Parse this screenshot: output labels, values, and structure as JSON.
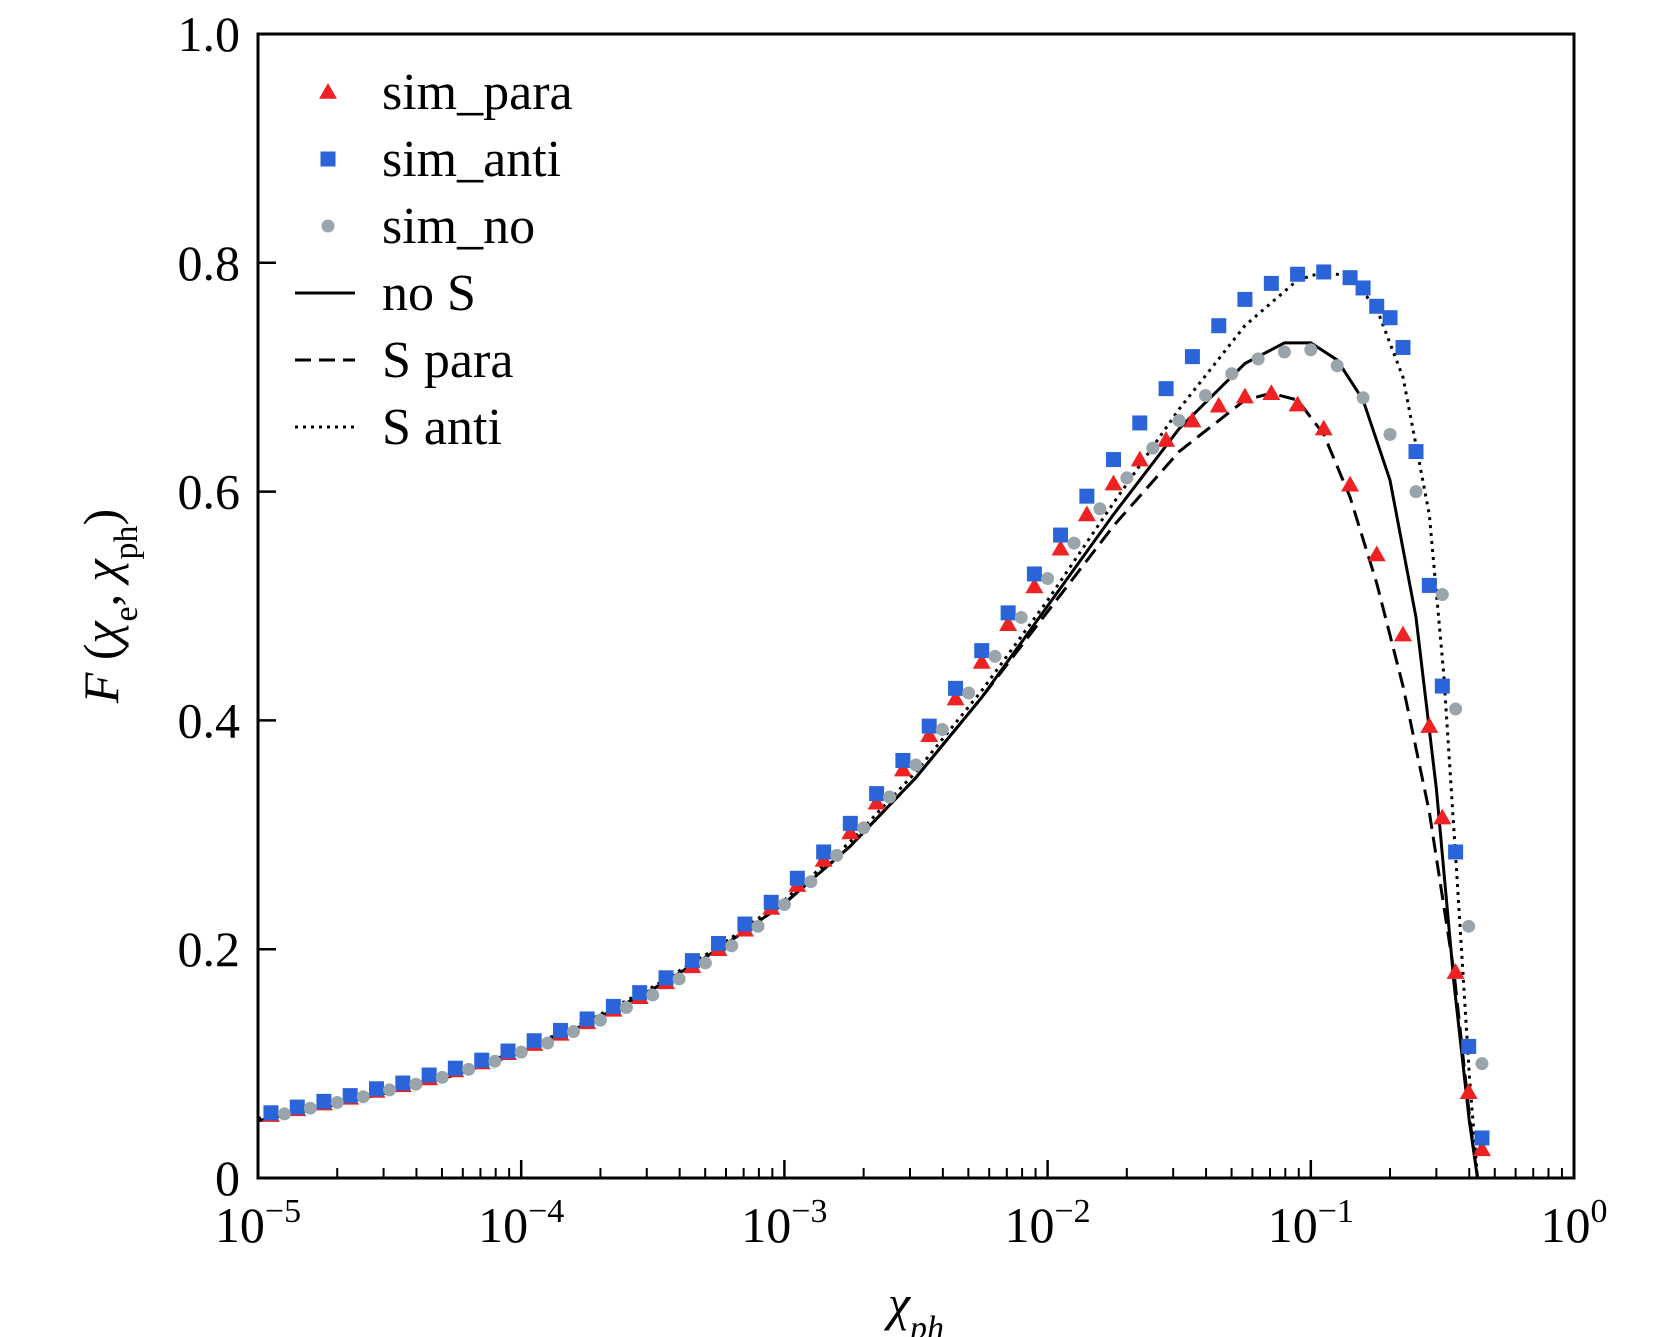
{
  "chart_data": {
    "type": "scatter",
    "xscale": "log",
    "xlim": [
      1e-05,
      1
    ],
    "ylim": [
      0,
      1.0
    ],
    "xlabel_html": "χ<tspan baseline-shift='sub' font-size='34'>ph</tspan>",
    "xlabel": "χph",
    "ylabel": "F (χe, χph)",
    "x_ticks": [
      {
        "value": 1e-05,
        "base": "10",
        "exp": "−5"
      },
      {
        "value": 0.0001,
        "base": "10",
        "exp": "−4"
      },
      {
        "value": 0.001,
        "base": "10",
        "exp": "−3"
      },
      {
        "value": 0.01,
        "base": "10",
        "exp": "−2"
      },
      {
        "value": 0.1,
        "base": "10",
        "exp": "−1"
      },
      {
        "value": 1,
        "base": "10",
        "exp": "0"
      }
    ],
    "y_ticks": [
      {
        "value": 0,
        "label": "0"
      },
      {
        "value": 0.2,
        "label": "0.2"
      },
      {
        "value": 0.4,
        "label": "0.4"
      },
      {
        "value": 0.6,
        "label": "0.6"
      },
      {
        "value": 0.8,
        "label": "0.8"
      },
      {
        "value": 1.0,
        "label": "1.0"
      }
    ],
    "legend_position": "top-left",
    "grid": false,
    "series": [
      {
        "name": "sim_para",
        "kind": "scatter",
        "marker": "triangle",
        "color": "#ee2222",
        "x": [
          1.12e-05,
          1.41e-05,
          1.78e-05,
          2.24e-05,
          2.82e-05,
          3.55e-05,
          4.47e-05,
          5.62e-05,
          7.08e-05,
          8.91e-05,
          0.000112,
          0.000141,
          0.000178,
          0.000224,
          0.000282,
          0.000355,
          0.000447,
          0.000562,
          0.000708,
          0.000891,
          0.00112,
          0.00141,
          0.00178,
          0.00224,
          0.00282,
          0.00355,
          0.00447,
          0.00562,
          0.00708,
          0.00891,
          0.0112,
          0.0141,
          0.0178,
          0.0224,
          0.0282,
          0.0355,
          0.0447,
          0.0562,
          0.0708,
          0.0891,
          0.112,
          0.141,
          0.178,
          0.224,
          0.282,
          0.316,
          0.355,
          0.398,
          0.447
        ],
        "y": [
          0.055,
          0.06,
          0.065,
          0.07,
          0.076,
          0.081,
          0.087,
          0.094,
          0.101,
          0.109,
          0.117,
          0.126,
          0.136,
          0.147,
          0.158,
          0.171,
          0.185,
          0.2,
          0.217,
          0.236,
          0.256,
          0.278,
          0.302,
          0.328,
          0.357,
          0.387,
          0.419,
          0.451,
          0.484,
          0.517,
          0.55,
          0.58,
          0.607,
          0.628,
          0.645,
          0.662,
          0.675,
          0.683,
          0.686,
          0.676,
          0.655,
          0.606,
          0.545,
          0.475,
          0.395,
          0.315,
          0.18,
          0.075,
          0.025
        ]
      },
      {
        "name": "sim_anti",
        "kind": "scatter",
        "marker": "square",
        "color": "#2a64d8",
        "x": [
          1.12e-05,
          1.41e-05,
          1.78e-05,
          2.24e-05,
          2.82e-05,
          3.55e-05,
          4.47e-05,
          5.62e-05,
          7.08e-05,
          8.91e-05,
          0.000112,
          0.000141,
          0.000178,
          0.000224,
          0.000282,
          0.000355,
          0.000447,
          0.000562,
          0.000708,
          0.000891,
          0.00112,
          0.00141,
          0.00178,
          0.00224,
          0.00282,
          0.00355,
          0.00447,
          0.00562,
          0.00708,
          0.00891,
          0.0112,
          0.0141,
          0.0178,
          0.0224,
          0.0282,
          0.0355,
          0.0447,
          0.0562,
          0.0708,
          0.0891,
          0.112,
          0.141,
          0.158,
          0.178,
          0.2,
          0.224,
          0.251,
          0.282,
          0.316,
          0.355,
          0.398,
          0.447
        ],
        "y": [
          0.057,
          0.062,
          0.067,
          0.072,
          0.078,
          0.083,
          0.09,
          0.096,
          0.103,
          0.111,
          0.12,
          0.129,
          0.139,
          0.15,
          0.162,
          0.175,
          0.19,
          0.205,
          0.222,
          0.241,
          0.262,
          0.285,
          0.31,
          0.336,
          0.365,
          0.395,
          0.428,
          0.461,
          0.494,
          0.528,
          0.562,
          0.596,
          0.628,
          0.66,
          0.69,
          0.718,
          0.745,
          0.768,
          0.782,
          0.79,
          0.792,
          0.787,
          0.778,
          0.762,
          0.752,
          0.726,
          0.635,
          0.518,
          0.43,
          0.285,
          0.115,
          0.035
        ]
      },
      {
        "name": "sim_no",
        "kind": "scatter",
        "marker": "circle",
        "color": "#9aa4ab",
        "x": [
          1.26e-05,
          1.58e-05,
          2e-05,
          2.51e-05,
          3.16e-05,
          3.98e-05,
          5.01e-05,
          6.31e-05,
          7.94e-05,
          0.0001,
          0.000126,
          0.000158,
          0.0002,
          0.000251,
          0.000316,
          0.000398,
          0.000501,
          0.000631,
          0.000794,
          0.001,
          0.00126,
          0.00158,
          0.002,
          0.00251,
          0.00316,
          0.00398,
          0.00501,
          0.00631,
          0.00794,
          0.01,
          0.0126,
          0.0158,
          0.02,
          0.0251,
          0.0316,
          0.0398,
          0.0501,
          0.0631,
          0.0794,
          0.1,
          0.126,
          0.158,
          0.2,
          0.251,
          0.316,
          0.355,
          0.398,
          0.447
        ],
        "y": [
          0.056,
          0.061,
          0.066,
          0.071,
          0.077,
          0.082,
          0.088,
          0.095,
          0.102,
          0.11,
          0.118,
          0.128,
          0.138,
          0.149,
          0.16,
          0.174,
          0.188,
          0.203,
          0.22,
          0.239,
          0.259,
          0.282,
          0.306,
          0.333,
          0.361,
          0.392,
          0.424,
          0.456,
          0.49,
          0.524,
          0.555,
          0.585,
          0.612,
          0.638,
          0.662,
          0.684,
          0.703,
          0.716,
          0.722,
          0.724,
          0.71,
          0.682,
          0.65,
          0.6,
          0.51,
          0.41,
          0.22,
          0.1
        ]
      },
      {
        "name": "no S",
        "kind": "line",
        "dash": "solid",
        "color": "#000000",
        "x": [
          1e-05,
          1.78e-05,
          3.16e-05,
          5.62e-05,
          0.0001,
          0.000178,
          0.000316,
          0.000562,
          0.001,
          0.00178,
          0.00316,
          0.00562,
          0.01,
          0.0178,
          0.0316,
          0.0562,
          0.0794,
          0.1,
          0.126,
          0.158,
          0.2,
          0.251,
          0.3,
          0.35,
          0.4,
          0.43
        ],
        "y": [
          0.05,
          0.062,
          0.075,
          0.09,
          0.11,
          0.135,
          0.165,
          0.2,
          0.24,
          0.29,
          0.35,
          0.42,
          0.5,
          0.58,
          0.655,
          0.712,
          0.73,
          0.73,
          0.715,
          0.68,
          0.61,
          0.49,
          0.34,
          0.17,
          0.05,
          0.0
        ]
      },
      {
        "name": "S para",
        "kind": "line",
        "dash": "dashed",
        "color": "#000000",
        "x": [
          1e-05,
          1.78e-05,
          3.16e-05,
          5.62e-05,
          0.0001,
          0.000178,
          0.000316,
          0.000562,
          0.001,
          0.00178,
          0.00316,
          0.00562,
          0.01,
          0.0178,
          0.0316,
          0.0562,
          0.0708,
          0.0891,
          0.112,
          0.141,
          0.178,
          0.224,
          0.282,
          0.35,
          0.4,
          0.43
        ],
        "y": [
          0.05,
          0.062,
          0.075,
          0.09,
          0.11,
          0.135,
          0.165,
          0.2,
          0.24,
          0.29,
          0.35,
          0.42,
          0.495,
          0.57,
          0.635,
          0.68,
          0.686,
          0.68,
          0.65,
          0.595,
          0.52,
          0.43,
          0.32,
          0.18,
          0.055,
          0.0
        ]
      },
      {
        "name": "S anti",
        "kind": "line",
        "dash": "dotted",
        "color": "#000000",
        "x": [
          1e-05,
          1.78e-05,
          3.16e-05,
          5.62e-05,
          0.0001,
          0.000178,
          0.000316,
          0.000562,
          0.001,
          0.00178,
          0.00316,
          0.00562,
          0.01,
          0.0178,
          0.0316,
          0.0562,
          0.0891,
          0.112,
          0.141,
          0.178,
          0.224,
          0.282,
          0.32,
          0.36,
          0.4,
          0.43
        ],
        "y": [
          0.052,
          0.064,
          0.077,
          0.092,
          0.112,
          0.137,
          0.167,
          0.202,
          0.243,
          0.294,
          0.355,
          0.426,
          0.505,
          0.59,
          0.672,
          0.745,
          0.785,
          0.792,
          0.788,
          0.76,
          0.7,
          0.58,
          0.44,
          0.26,
          0.09,
          0.0
        ]
      }
    ]
  }
}
